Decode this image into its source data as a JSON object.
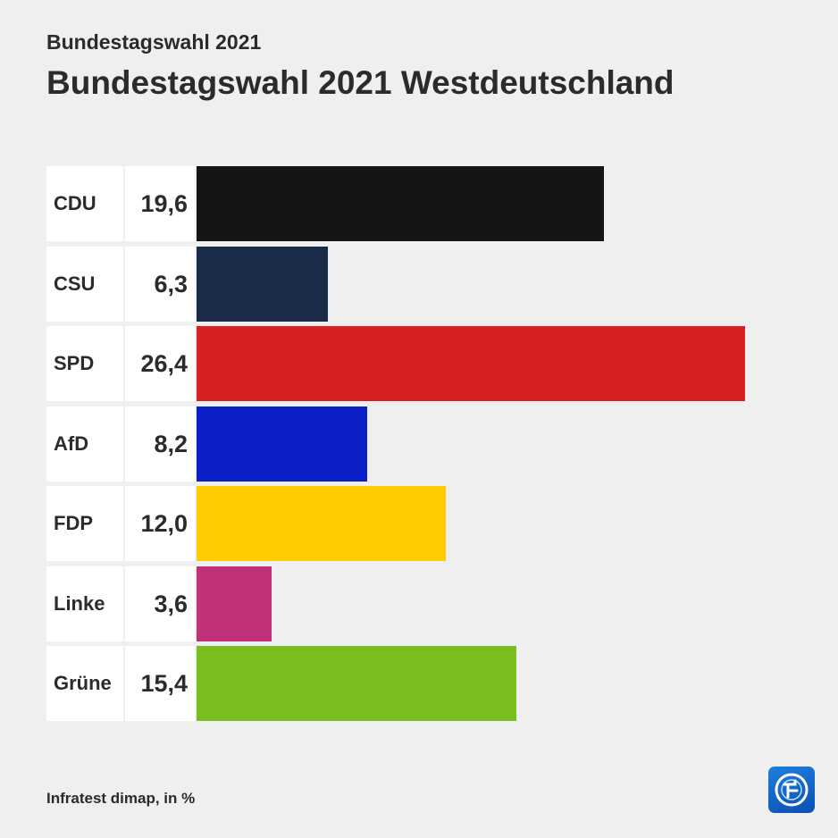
{
  "header": {
    "supertitle": "Bundestagswahl 2021",
    "title": "Bundestagswahl 2021 Westdeutschland"
  },
  "footer": {
    "source": "Infratest dimap, in %",
    "logo_icon": "tagesschau-logo-icon"
  },
  "chart_data": {
    "type": "bar",
    "orientation": "horizontal",
    "title": "Bundestagswahl 2021 Westdeutschland",
    "unit": "%",
    "categories": [
      "CDU",
      "CSU",
      "SPD",
      "AfD",
      "FDP",
      "Linke",
      "Grüne"
    ],
    "values": [
      19.6,
      6.3,
      26.4,
      8.2,
      12.0,
      3.6,
      15.4
    ],
    "value_labels": [
      "19,6",
      "6,3",
      "26,4",
      "8,2",
      "12,0",
      "3,6",
      "15,4"
    ],
    "colors": [
      "#151515",
      "#1b2b4a",
      "#d81f22",
      "#0a1fc8",
      "#ffcc00",
      "#c03278",
      "#78bf1e"
    ],
    "xlim": [
      0,
      26.4
    ],
    "grid": false,
    "legend": "none"
  }
}
